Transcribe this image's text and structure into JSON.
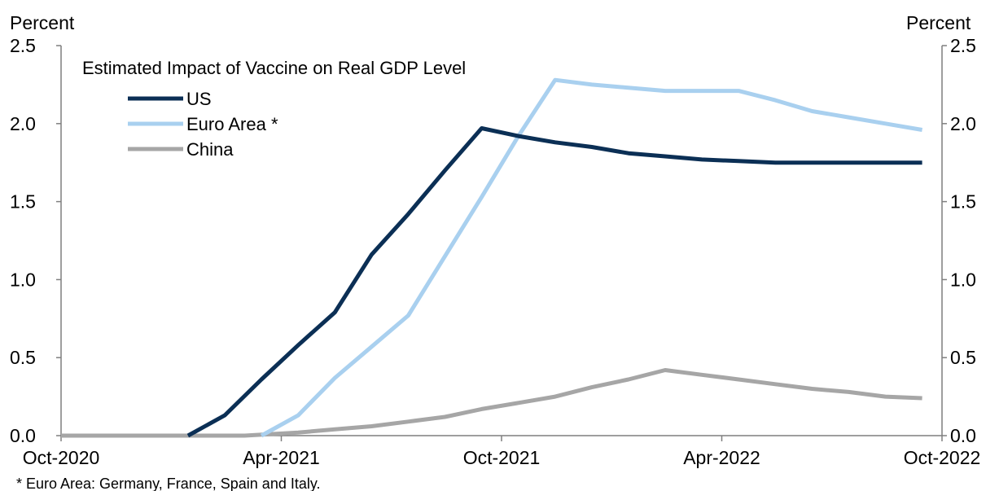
{
  "chart_data": {
    "type": "line",
    "title": "Estimated Impact of Vaccine on Real GDP Level",
    "left_axis_unit": "Percent",
    "right_axis_unit": "Percent",
    "ylim": [
      0,
      2.5
    ],
    "yticks": [
      "0.0",
      "0.5",
      "1.0",
      "1.5",
      "2.0",
      "2.5"
    ],
    "xlim": [
      "2020-10",
      "2022-10"
    ],
    "xticks": [
      "Oct-2020",
      "Apr-2021",
      "Oct-2021",
      "Apr-2022",
      "Oct-2022"
    ],
    "legend_position": "top-left",
    "grid": false,
    "footnote": "* Euro Area: Germany, France, Spain and Italy.",
    "series": [
      {
        "name": "US",
        "color": "#0b2f55",
        "points": [
          [
            "2021-01-15",
            0.0
          ],
          [
            "2021-02-15",
            0.13
          ],
          [
            "2021-03-15",
            0.36
          ],
          [
            "2021-04-15",
            0.58
          ],
          [
            "2021-05-15",
            0.79
          ],
          [
            "2021-06-15",
            1.16
          ],
          [
            "2021-07-15",
            1.42
          ],
          [
            "2021-08-15",
            1.7
          ],
          [
            "2021-09-15",
            1.97
          ],
          [
            "2021-10-15",
            1.92
          ],
          [
            "2021-11-15",
            1.88
          ],
          [
            "2021-12-15",
            1.85
          ],
          [
            "2022-01-15",
            1.81
          ],
          [
            "2022-02-15",
            1.79
          ],
          [
            "2022-03-15",
            1.77
          ],
          [
            "2022-04-15",
            1.76
          ],
          [
            "2022-05-15",
            1.75
          ],
          [
            "2022-06-15",
            1.75
          ],
          [
            "2022-07-15",
            1.75
          ],
          [
            "2022-08-15",
            1.75
          ],
          [
            "2022-09-15",
            1.75
          ]
        ]
      },
      {
        "name": "Euro Area *",
        "color": "#a9d0ef",
        "points": [
          [
            "2021-03-15",
            0.0
          ],
          [
            "2021-04-15",
            0.13
          ],
          [
            "2021-05-15",
            0.37
          ],
          [
            "2021-06-15",
            0.57
          ],
          [
            "2021-07-15",
            0.77
          ],
          [
            "2021-08-15",
            1.15
          ],
          [
            "2021-09-15",
            1.53
          ],
          [
            "2021-10-15",
            1.92
          ],
          [
            "2021-11-15",
            2.28
          ],
          [
            "2021-12-15",
            2.25
          ],
          [
            "2022-01-15",
            2.23
          ],
          [
            "2022-02-15",
            2.21
          ],
          [
            "2022-03-15",
            2.21
          ],
          [
            "2022-04-15",
            2.21
          ],
          [
            "2022-05-15",
            2.15
          ],
          [
            "2022-06-15",
            2.08
          ],
          [
            "2022-07-15",
            2.04
          ],
          [
            "2022-08-15",
            2.0
          ],
          [
            "2022-09-15",
            1.96
          ]
        ]
      },
      {
        "name": "China",
        "color": "#a6a6a6",
        "points": [
          [
            "2020-10-01",
            0.0
          ],
          [
            "2021-03-01",
            0.0
          ],
          [
            "2021-04-15",
            0.02
          ],
          [
            "2021-05-15",
            0.04
          ],
          [
            "2021-06-15",
            0.06
          ],
          [
            "2021-07-15",
            0.09
          ],
          [
            "2021-08-15",
            0.12
          ],
          [
            "2021-09-15",
            0.17
          ],
          [
            "2021-10-15",
            0.21
          ],
          [
            "2021-11-15",
            0.25
          ],
          [
            "2021-12-15",
            0.31
          ],
          [
            "2022-01-15",
            0.36
          ],
          [
            "2022-02-15",
            0.42
          ],
          [
            "2022-03-15",
            0.39
          ],
          [
            "2022-04-15",
            0.36
          ],
          [
            "2022-05-15",
            0.33
          ],
          [
            "2022-06-15",
            0.3
          ],
          [
            "2022-07-15",
            0.28
          ],
          [
            "2022-08-15",
            0.25
          ],
          [
            "2022-09-15",
            0.24
          ]
        ]
      }
    ]
  }
}
